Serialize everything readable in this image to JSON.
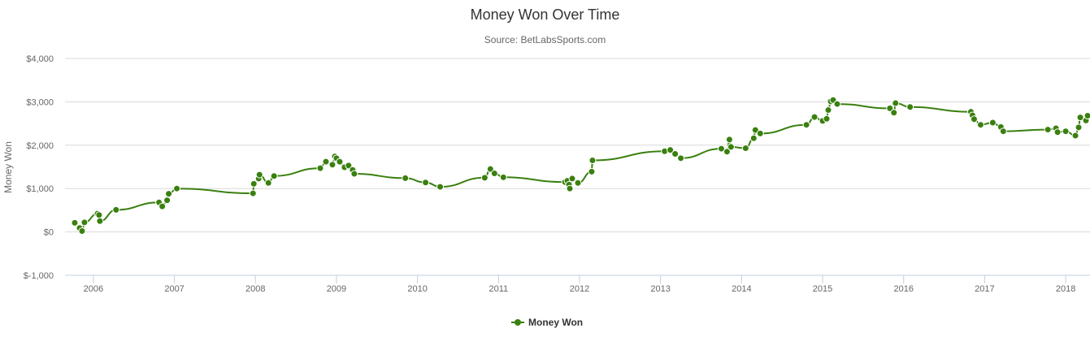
{
  "chart_data": {
    "type": "line",
    "title": "Money Won Over Time",
    "subtitle": "Source: BetLabsSports.com",
    "ylabel": "Money Won",
    "xlabel": "",
    "ylim": [
      -1000,
      4000
    ],
    "yticks": [
      -1000,
      0,
      1000,
      2000,
      3000,
      4000
    ],
    "ytick_labels": [
      "$-1,000",
      "$0",
      "$1,000",
      "$2,000",
      "$3,000",
      "$4,000"
    ],
    "xlim": [
      2005.65,
      2018.3
    ],
    "xticks": [
      2006,
      2007,
      2008,
      2009,
      2010,
      2011,
      2012,
      2013,
      2014,
      2015,
      2016,
      2017,
      2018
    ],
    "xtick_labels": [
      "2006",
      "2007",
      "2008",
      "2009",
      "2010",
      "2011",
      "2012",
      "2013",
      "2014",
      "2015",
      "2016",
      "2017",
      "2018"
    ],
    "grid": true,
    "legend": "bottom-center",
    "series": [
      {
        "name": "Money Won",
        "color": "#3a8010",
        "x": [
          2005.77,
          2005.83,
          2005.86,
          2005.89,
          2006.05,
          2006.07,
          2006.08,
          2006.28,
          2006.81,
          2006.85,
          2006.91,
          2006.93,
          2007.03,
          2007.97,
          2007.98,
          2008.04,
          2008.05,
          2008.16,
          2008.23,
          2008.8,
          2008.87,
          2008.95,
          2008.98,
          2009.0,
          2009.04,
          2009.1,
          2009.15,
          2009.2,
          2009.22,
          2009.85,
          2010.1,
          2010.28,
          2010.83,
          2010.9,
          2010.95,
          2011.06,
          2011.82,
          2011.85,
          2011.87,
          2011.88,
          2011.91,
          2011.98,
          2012.15,
          2012.16,
          2013.05,
          2013.12,
          2013.18,
          2013.25,
          2013.75,
          2013.82,
          2013.85,
          2013.87,
          2014.05,
          2014.15,
          2014.17,
          2014.23,
          2014.8,
          2014.9,
          2015.0,
          2015.05,
          2015.07,
          2015.1,
          2015.13,
          2015.18,
          2015.83,
          2015.88,
          2015.9,
          2016.08,
          2016.83,
          2016.85,
          2016.87,
          2016.95,
          2017.1,
          2017.2,
          2017.23,
          2017.78,
          2017.88,
          2017.9,
          2018.0,
          2018.12,
          2018.16,
          2018.18,
          2018.25,
          2018.27
        ],
        "values": [
          210,
          90,
          20,
          220,
          420,
          390,
          250,
          510,
          680,
          590,
          730,
          880,
          1000,
          890,
          1110,
          1230,
          1320,
          1130,
          1290,
          1470,
          1620,
          1550,
          1740,
          1700,
          1620,
          1490,
          1530,
          1430,
          1340,
          1240,
          1140,
          1040,
          1250,
          1450,
          1350,
          1260,
          1150,
          1180,
          1090,
          1000,
          1230,
          1130,
          1390,
          1650,
          1860,
          1890,
          1800,
          1700,
          1920,
          1850,
          2130,
          1960,
          1930,
          2160,
          2350,
          2270,
          2470,
          2650,
          2560,
          2610,
          2810,
          3010,
          3040,
          2950,
          2850,
          2750,
          2970,
          2880,
          2770,
          2690,
          2600,
          2470,
          2520,
          2420,
          2320,
          2360,
          2390,
          2300,
          2320,
          2220,
          2410,
          2640,
          2570,
          2680
        ]
      }
    ]
  }
}
